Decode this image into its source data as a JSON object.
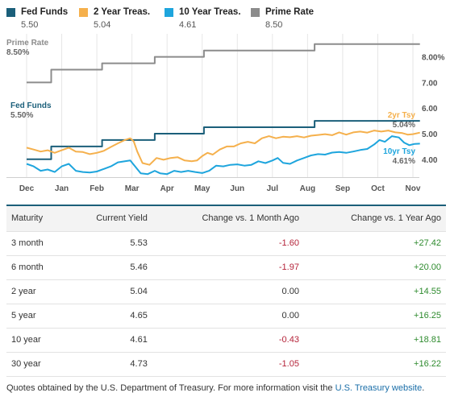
{
  "legend": [
    {
      "name": "Fed Funds",
      "value": "5.50",
      "color": "#1b5f7a"
    },
    {
      "name": "2 Year Treas.",
      "value": "5.04",
      "color": "#f5b04c"
    },
    {
      "name": "10 Year Treas.",
      "value": "4.61",
      "color": "#1ea5dd"
    },
    {
      "name": "Prime Rate",
      "value": "8.50",
      "color": "#8c8c8c"
    }
  ],
  "chart_data": {
    "type": "line",
    "x_ticks": [
      "Dec",
      "Jan",
      "Feb",
      "Mar",
      "Apr",
      "May",
      "Jun",
      "Jul",
      "Aug",
      "Sep",
      "Oct",
      "Nov"
    ],
    "y_ticks": [
      {
        "value": 4,
        "label": "4.00"
      },
      {
        "value": 5,
        "label": "5.00"
      },
      {
        "value": 6,
        "label": "6.00"
      },
      {
        "value": 7,
        "label": "7.00"
      },
      {
        "value": 8,
        "label": "8.00%"
      }
    ],
    "ylim": [
      3.3,
      8.9
    ],
    "grid": "vertical",
    "series": [
      {
        "name": "Prime Rate",
        "color": "#8c8c8c",
        "step": true,
        "points": [
          [
            0,
            7.0
          ],
          [
            0.7,
            7.0
          ],
          [
            0.7,
            7.5
          ],
          [
            2.15,
            7.5
          ],
          [
            2.15,
            7.75
          ],
          [
            3.65,
            7.75
          ],
          [
            3.65,
            8.0
          ],
          [
            5.05,
            8.0
          ],
          [
            5.05,
            8.25
          ],
          [
            8.2,
            8.25
          ],
          [
            8.2,
            8.5
          ],
          [
            11.2,
            8.5
          ]
        ]
      },
      {
        "name": "Fed Funds",
        "color": "#1b5f7a",
        "step": true,
        "points": [
          [
            0,
            4.0
          ],
          [
            0.7,
            4.0
          ],
          [
            0.7,
            4.5
          ],
          [
            2.15,
            4.5
          ],
          [
            2.15,
            4.75
          ],
          [
            3.65,
            4.75
          ],
          [
            3.65,
            5.0
          ],
          [
            5.05,
            5.0
          ],
          [
            5.05,
            5.25
          ],
          [
            8.2,
            5.25
          ],
          [
            8.2,
            5.5
          ],
          [
            11.2,
            5.5
          ]
        ]
      },
      {
        "name": "2 Year Treas.",
        "color": "#f5b04c",
        "step": false,
        "points": [
          [
            0,
            4.45
          ],
          [
            0.2,
            4.38
          ],
          [
            0.4,
            4.3
          ],
          [
            0.6,
            4.35
          ],
          [
            0.8,
            4.25
          ],
          [
            1.0,
            4.35
          ],
          [
            1.2,
            4.45
          ],
          [
            1.4,
            4.3
          ],
          [
            1.6,
            4.28
          ],
          [
            1.8,
            4.2
          ],
          [
            2.0,
            4.25
          ],
          [
            2.2,
            4.33
          ],
          [
            2.4,
            4.48
          ],
          [
            2.6,
            4.62
          ],
          [
            2.8,
            4.75
          ],
          [
            2.95,
            4.82
          ],
          [
            3.05,
            4.7
          ],
          [
            3.15,
            4.3
          ],
          [
            3.3,
            3.85
          ],
          [
            3.5,
            3.78
          ],
          [
            3.7,
            4.05
          ],
          [
            3.9,
            3.98
          ],
          [
            4.1,
            4.05
          ],
          [
            4.3,
            4.08
          ],
          [
            4.5,
            3.95
          ],
          [
            4.7,
            3.92
          ],
          [
            4.85,
            3.95
          ],
          [
            5.0,
            4.12
          ],
          [
            5.15,
            4.25
          ],
          [
            5.3,
            4.18
          ],
          [
            5.5,
            4.38
          ],
          [
            5.7,
            4.5
          ],
          [
            5.9,
            4.5
          ],
          [
            6.1,
            4.62
          ],
          [
            6.3,
            4.68
          ],
          [
            6.5,
            4.62
          ],
          [
            6.7,
            4.82
          ],
          [
            6.9,
            4.9
          ],
          [
            7.1,
            4.82
          ],
          [
            7.3,
            4.88
          ],
          [
            7.5,
            4.86
          ],
          [
            7.7,
            4.9
          ],
          [
            7.9,
            4.85
          ],
          [
            8.1,
            4.92
          ],
          [
            8.3,
            4.95
          ],
          [
            8.5,
            4.98
          ],
          [
            8.7,
            4.94
          ],
          [
            8.9,
            5.05
          ],
          [
            9.1,
            4.96
          ],
          [
            9.3,
            5.05
          ],
          [
            9.5,
            5.08
          ],
          [
            9.7,
            5.04
          ],
          [
            9.9,
            5.12
          ],
          [
            10.1,
            5.08
          ],
          [
            10.3,
            5.12
          ],
          [
            10.5,
            5.05
          ],
          [
            10.7,
            5.02
          ],
          [
            10.85,
            4.96
          ],
          [
            11.0,
            4.98
          ],
          [
            11.2,
            5.04
          ]
        ]
      },
      {
        "name": "10 Year Treas.",
        "color": "#1ea5dd",
        "step": false,
        "points": [
          [
            0,
            3.82
          ],
          [
            0.2,
            3.72
          ],
          [
            0.4,
            3.55
          ],
          [
            0.6,
            3.6
          ],
          [
            0.8,
            3.5
          ],
          [
            1.0,
            3.72
          ],
          [
            1.2,
            3.82
          ],
          [
            1.4,
            3.55
          ],
          [
            1.6,
            3.5
          ],
          [
            1.8,
            3.48
          ],
          [
            2.0,
            3.52
          ],
          [
            2.2,
            3.62
          ],
          [
            2.4,
            3.72
          ],
          [
            2.6,
            3.88
          ],
          [
            2.8,
            3.92
          ],
          [
            2.95,
            3.95
          ],
          [
            3.1,
            3.7
          ],
          [
            3.25,
            3.45
          ],
          [
            3.45,
            3.42
          ],
          [
            3.65,
            3.55
          ],
          [
            3.8,
            3.45
          ],
          [
            4.0,
            3.42
          ],
          [
            4.2,
            3.55
          ],
          [
            4.4,
            3.5
          ],
          [
            4.6,
            3.55
          ],
          [
            4.8,
            3.5
          ],
          [
            5.0,
            3.46
          ],
          [
            5.2,
            3.55
          ],
          [
            5.4,
            3.75
          ],
          [
            5.6,
            3.72
          ],
          [
            5.8,
            3.78
          ],
          [
            6.0,
            3.8
          ],
          [
            6.2,
            3.75
          ],
          [
            6.4,
            3.78
          ],
          [
            6.6,
            3.92
          ],
          [
            6.8,
            3.85
          ],
          [
            7.0,
            3.95
          ],
          [
            7.15,
            4.05
          ],
          [
            7.3,
            3.86
          ],
          [
            7.5,
            3.82
          ],
          [
            7.7,
            3.95
          ],
          [
            7.9,
            4.05
          ],
          [
            8.1,
            4.15
          ],
          [
            8.3,
            4.2
          ],
          [
            8.5,
            4.18
          ],
          [
            8.7,
            4.26
          ],
          [
            8.9,
            4.28
          ],
          [
            9.1,
            4.25
          ],
          [
            9.3,
            4.3
          ],
          [
            9.5,
            4.36
          ],
          [
            9.7,
            4.4
          ],
          [
            9.9,
            4.58
          ],
          [
            10.05,
            4.75
          ],
          [
            10.2,
            4.68
          ],
          [
            10.4,
            4.9
          ],
          [
            10.6,
            4.85
          ],
          [
            10.75,
            4.65
          ],
          [
            10.9,
            4.55
          ],
          [
            11.05,
            4.6
          ],
          [
            11.2,
            4.61
          ]
        ]
      }
    ],
    "annotations": [
      {
        "title": "Prime Rate",
        "value": "8.50%",
        "color": "#8c8c8c",
        "x": 0,
        "y": 8.5
      },
      {
        "title": "Fed Funds",
        "value": "5.50%",
        "color": "#1b5f7a",
        "x": 0,
        "y": 5.5
      },
      {
        "title": "2yr Tsy",
        "value": "5.04%",
        "color": "#f5b04c",
        "x": 11.2,
        "y": 5.04
      },
      {
        "title": "10yr Tsy",
        "value": "4.61%",
        "color": "#1ea5dd",
        "x": 11.2,
        "y": 4.61
      }
    ]
  },
  "table": {
    "headers": [
      "Maturity",
      "Current Yield",
      "Change vs. 1 Month Ago",
      "Change vs. 1 Year Ago"
    ],
    "rows": [
      {
        "maturity": "3 month",
        "yield": "5.53",
        "month": "-1.60",
        "year": "+27.42"
      },
      {
        "maturity": "6 month",
        "yield": "5.46",
        "month": "-1.97",
        "year": "+20.00"
      },
      {
        "maturity": "2 year",
        "yield": "5.04",
        "month": "0.00",
        "year": "+14.55"
      },
      {
        "maturity": "5 year",
        "yield": "4.65",
        "month": "0.00",
        "year": "+16.25"
      },
      {
        "maturity": "10 year",
        "yield": "4.61",
        "month": "-0.43",
        "year": "+18.81"
      },
      {
        "maturity": "30 year",
        "yield": "4.73",
        "month": "-1.05",
        "year": "+16.22"
      }
    ]
  },
  "footnote": {
    "text": "Quotes obtained by the U.S. Department of Treasury. For more information visit the ",
    "link": "U.S. Treasury website",
    "tail": "."
  }
}
